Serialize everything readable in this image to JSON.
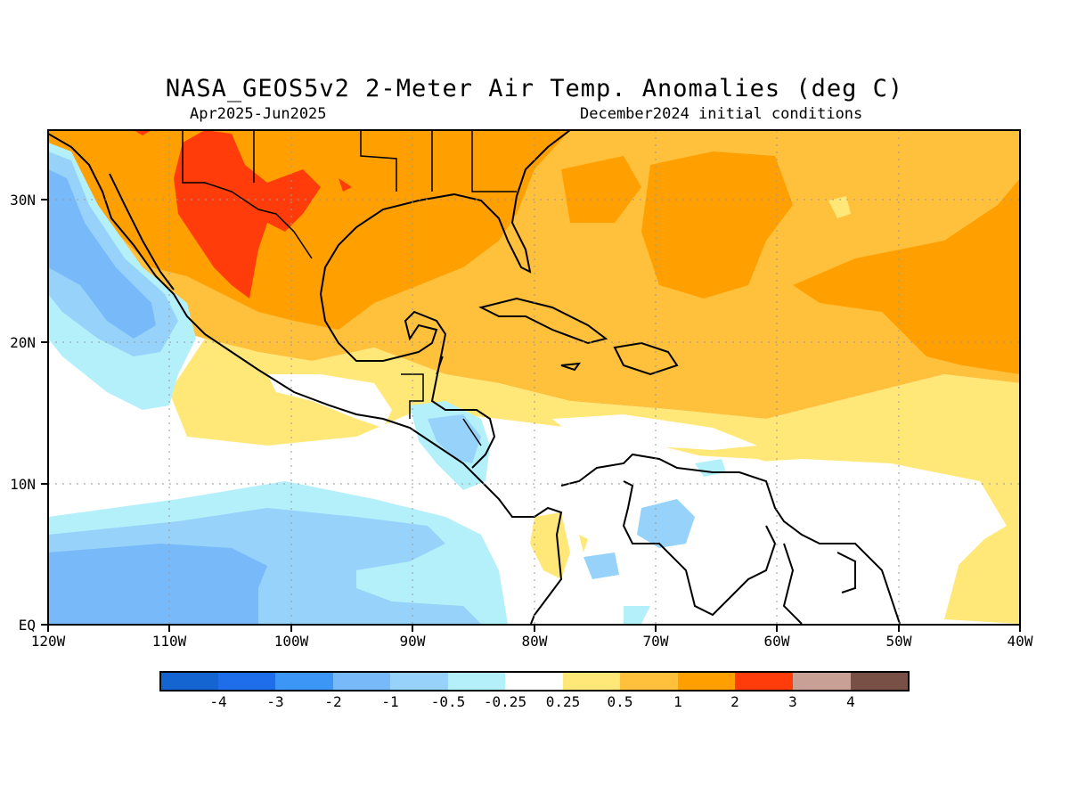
{
  "header": {
    "title": "NASA_GEOS5v2 2-Meter Air Temp. Anomalies (deg C)",
    "period": "Apr2025-Jun2025",
    "init": "December2024 initial conditions"
  },
  "map": {
    "lat_labels": [
      "30N",
      "20N",
      "10N",
      "EQ"
    ],
    "lon_labels": [
      "120W",
      "110W",
      "100W",
      "90W",
      "80W",
      "70W",
      "60W",
      "50W",
      "40W"
    ]
  },
  "colorbar": {
    "colors": [
      "#1464d2",
      "#1e6eeb",
      "#3c96f5",
      "#78b9fa",
      "#96d2fa",
      "#b4f0fa",
      "#ffffff",
      "#ffe878",
      "#ffc03c",
      "#ffa000",
      "#ff3c0a",
      "#c8a096",
      "#785046"
    ],
    "labels": [
      "-4",
      "-3",
      "-2",
      "-1",
      "-0.5",
      "-0.25",
      "0.25",
      "0.5",
      "1",
      "2",
      "3",
      "4"
    ]
  }
}
